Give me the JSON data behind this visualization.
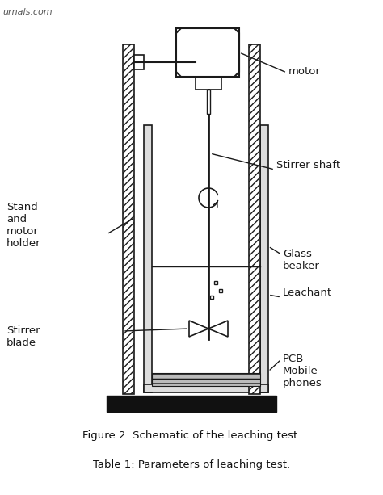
{
  "title": "Figure 2: Schematic of the leaching test.",
  "table_title": "Table 1: Parameters of leaching test.",
  "watermark": "urnals.com",
  "labels": {
    "motor": "motor",
    "stirrer_shaft": "Stirrer shaft",
    "stand_motor_holder": "Stand\nand\nmotor\nholder",
    "glass_beaker": "Glass\nbeaker",
    "leachant": "Leachant",
    "stirrer_blade": "Stirrer\nblade",
    "pcb_mobile": "PCB\nMobile\nphones"
  },
  "bg_color": "#ffffff",
  "line_color": "#1a1a1a"
}
